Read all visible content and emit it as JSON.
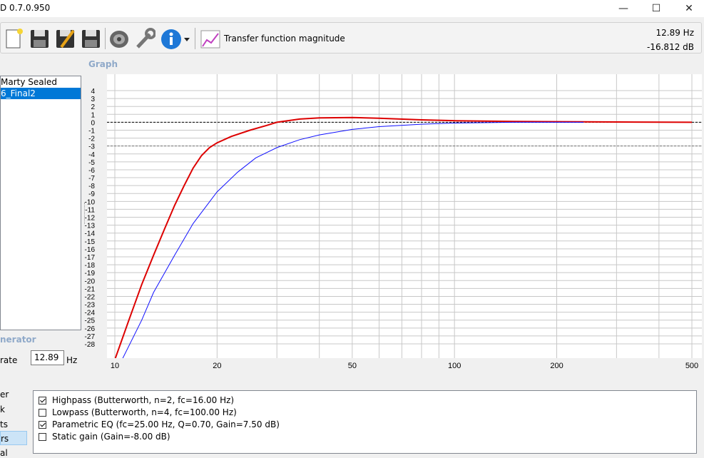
{
  "window": {
    "title": "D 0.7.0.950",
    "minimize_glyph": "—",
    "maximize_glyph": "☐",
    "close_glyph": "✕"
  },
  "toolbar": {
    "icons": [
      "new-file-icon",
      "save-icon",
      "save-as-icon",
      "save-all-icon",
      "speaker-icon",
      "wrench-icon",
      "info-icon",
      "chevron-down-icon",
      "graph-icon"
    ],
    "view_label": "Transfer function magnitude"
  },
  "readout": {
    "frequency": "12.89 Hz",
    "magnitude": "-16.812 dB"
  },
  "graph_section": {
    "label": "Graph"
  },
  "project_list": {
    "items": [
      {
        "label": "Marty Sealed",
        "selected": false
      },
      {
        "label": "6_Final2",
        "selected": true
      }
    ]
  },
  "generator_section": {
    "label": "nerator"
  },
  "rate": {
    "label": "rate",
    "value": "12.89",
    "unit": "Hz"
  },
  "side_nav": {
    "items": [
      "er",
      "k",
      "ts",
      "rs",
      "al"
    ],
    "selected_index": 3
  },
  "filters": [
    {
      "label": "Highpass (Butterworth, n=2, fc=16.00 Hz)",
      "checked": true
    },
    {
      "label": "Lowpass (Butterworth, n=4, fc=100.00 Hz)",
      "checked": false
    },
    {
      "label": "Parametric EQ (fc=25.00 Hz, Q=0.70, Gain=7.50 dB)",
      "checked": true
    },
    {
      "label": "Static gain (Gain=-8.00 dB)",
      "checked": false
    }
  ],
  "chart_data": {
    "type": "line",
    "x_scale": "log",
    "xlim": [
      10,
      500
    ],
    "ylim": [
      -28,
      4
    ],
    "x_tick_labels": [
      "10",
      "20",
      "50",
      "100",
      "200",
      "500"
    ],
    "x_tick_values": [
      10,
      20,
      50,
      100,
      200,
      500
    ],
    "y_tick_values": [
      4,
      3,
      2,
      1,
      0,
      -1,
      -2,
      -3,
      -4,
      -5,
      -6,
      -7,
      -8,
      -9,
      -10,
      -11,
      -12,
      -13,
      -14,
      -15,
      -16,
      -17,
      -18,
      -19,
      -20,
      -21,
      -22,
      -23,
      -24,
      -25,
      -26,
      -27,
      -28
    ],
    "reference_lines": [
      0,
      -3
    ],
    "grid": true,
    "series": [
      {
        "color": "#dd0000",
        "points": [
          [
            10,
            -30
          ],
          [
            11,
            -25
          ],
          [
            12,
            -20.5
          ],
          [
            13,
            -16.8
          ],
          [
            14,
            -13.5
          ],
          [
            15,
            -10.5
          ],
          [
            16,
            -8
          ],
          [
            17,
            -5.8
          ],
          [
            18,
            -4.2
          ],
          [
            19,
            -3.2
          ],
          [
            20,
            -2.6
          ],
          [
            22,
            -1.8
          ],
          [
            25,
            -1.0
          ],
          [
            28,
            -0.4
          ],
          [
            30,
            0.0
          ],
          [
            35,
            0.4
          ],
          [
            40,
            0.55
          ],
          [
            50,
            0.6
          ],
          [
            60,
            0.5
          ],
          [
            80,
            0.3
          ],
          [
            100,
            0.2
          ],
          [
            150,
            0.1
          ],
          [
            240,
            0.05
          ],
          [
            500,
            0.0
          ]
        ]
      },
      {
        "color": "#1010ff",
        "points": [
          [
            10.5,
            -30
          ],
          [
            12,
            -25
          ],
          [
            13,
            -21.5
          ],
          [
            15,
            -16.8
          ],
          [
            17,
            -12.8
          ],
          [
            20,
            -8.8
          ],
          [
            23,
            -6.3
          ],
          [
            26,
            -4.5
          ],
          [
            30,
            -3.2
          ],
          [
            35,
            -2.2
          ],
          [
            40,
            -1.6
          ],
          [
            50,
            -0.9
          ],
          [
            60,
            -0.55
          ],
          [
            80,
            -0.25
          ],
          [
            100,
            -0.1
          ],
          [
            150,
            0.0
          ],
          [
            240,
            0.0
          ]
        ]
      }
    ]
  }
}
